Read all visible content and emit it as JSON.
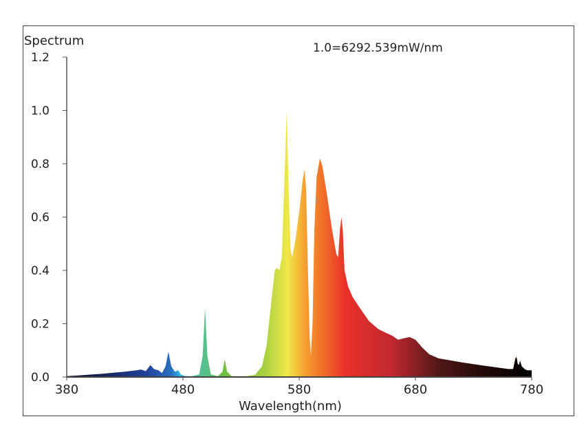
{
  "chart_data": {
    "type": "area",
    "title": "Spectrum",
    "annotation": "1.0=6292.539mW/nm",
    "xlabel": "Wavelength(nm)",
    "ylabel": "",
    "xlim": [
      380,
      780
    ],
    "ylim": [
      0,
      1.2
    ],
    "xticks": [
      "380",
      "480",
      "580",
      "680",
      "780"
    ],
    "yticks": [
      "0.0",
      "0.2",
      "0.4",
      "0.6",
      "0.8",
      "1.0",
      "1.2"
    ],
    "grid": false,
    "legend": "none",
    "fill": "wavelength color gradient",
    "gradient_stops": [
      [
        380,
        "#0a0a1e"
      ],
      [
        420,
        "#1a2a6a"
      ],
      [
        450,
        "#22449a"
      ],
      [
        470,
        "#2a70c0"
      ],
      [
        478,
        "#30b8e8"
      ],
      [
        490,
        "#50c0a0"
      ],
      [
        500,
        "#58c08a"
      ],
      [
        515,
        "#70c040"
      ],
      [
        550,
        "#a8d040"
      ],
      [
        570,
        "#f0e848"
      ],
      [
        585,
        "#f5a030"
      ],
      [
        600,
        "#f07028"
      ],
      [
        620,
        "#e83028"
      ],
      [
        660,
        "#c02830"
      ],
      [
        700,
        "#501818"
      ],
      [
        740,
        "#200808"
      ],
      [
        780,
        "#000000"
      ]
    ],
    "series": [
      {
        "x": [
          380,
          390,
          400,
          410,
          420,
          430,
          440,
          444,
          448,
          452,
          455,
          459,
          462,
          465,
          467.5,
          470,
          473,
          476,
          478,
          482,
          488,
          494,
          497,
          499,
          501,
          504,
          510,
          514,
          516,
          518,
          522,
          535,
          542,
          548,
          552,
          556,
          559,
          561,
          563,
          565,
          567,
          569.3,
          571,
          572.5,
          574,
          577,
          580,
          583,
          584.7,
          586,
          587.5,
          589,
          590,
          591.5,
          593,
          595,
          597.8,
          600,
          604,
          608,
          612,
          613.5,
          615,
          616.3,
          617.5,
          619,
          622,
          626,
          632,
          640,
          648,
          655,
          660,
          665,
          670,
          675,
          680,
          686,
          692,
          700,
          720,
          740,
          760,
          764,
          766,
          767,
          768,
          769,
          770,
          771.5,
          774,
          776,
          780
        ],
        "y": [
          0.003,
          0.006,
          0.009,
          0.012,
          0.016,
          0.02,
          0.025,
          0.028,
          0.022,
          0.045,
          0.03,
          0.025,
          0.015,
          0.04,
          0.095,
          0.04,
          0.02,
          0.025,
          0.01,
          0.003,
          0.003,
          0.01,
          0.08,
          0.26,
          0.08,
          0.01,
          0.003,
          0.02,
          0.067,
          0.02,
          0.003,
          0.003,
          0.008,
          0.04,
          0.12,
          0.28,
          0.4,
          0.41,
          0.4,
          0.45,
          0.7,
          1.0,
          0.7,
          0.48,
          0.45,
          0.52,
          0.62,
          0.74,
          0.78,
          0.7,
          0.4,
          0.15,
          0.08,
          0.2,
          0.55,
          0.75,
          0.82,
          0.79,
          0.68,
          0.56,
          0.46,
          0.45,
          0.55,
          0.6,
          0.55,
          0.4,
          0.34,
          0.3,
          0.26,
          0.21,
          0.18,
          0.165,
          0.155,
          0.14,
          0.145,
          0.15,
          0.14,
          0.11,
          0.085,
          0.07,
          0.055,
          0.042,
          0.03,
          0.03,
          0.07,
          0.075,
          0.05,
          0.045,
          0.062,
          0.04,
          0.03,
          0.025,
          0.025
        ]
      }
    ]
  }
}
